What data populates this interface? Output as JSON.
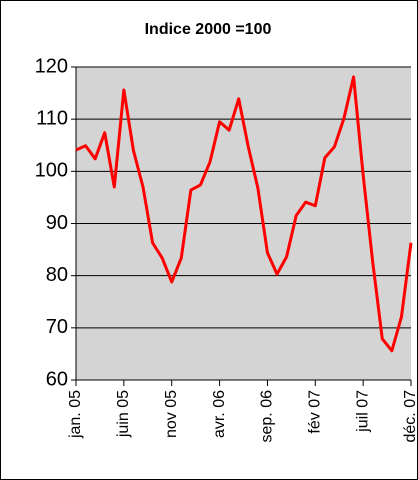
{
  "chart_data": {
    "type": "line",
    "title": "Indice 2000 =100",
    "categories": [
      "jan. 05",
      null,
      null,
      null,
      null,
      "juin 05",
      null,
      null,
      null,
      null,
      "nov 05",
      null,
      null,
      null,
      null,
      "avr. 06",
      null,
      null,
      null,
      null,
      "sep. 06",
      null,
      null,
      null,
      null,
      "fév 07",
      null,
      null,
      null,
      null,
      "juil 07",
      null,
      null,
      null,
      null,
      "déc. 07"
    ],
    "series": [
      {
        "color": "#ff0000",
        "values": [
          104.1,
          104.9,
          102.4,
          107.4,
          97,
          115.6,
          104,
          97,
          86.3,
          83.4,
          78.8,
          83.4,
          96.4,
          97.4,
          101.8,
          109.5,
          107.9,
          113.9,
          104.7,
          96.8,
          84.4,
          80.3,
          83.6,
          91.5,
          94.1,
          93.4,
          102.6,
          104.7,
          110.2,
          118.1,
          99.3,
          82.6,
          67.9,
          65.6,
          72.1,
          86.3
        ]
      }
    ],
    "ylim": [
      60,
      120
    ],
    "yticks": [
      60,
      70,
      80,
      90,
      100,
      110,
      120
    ],
    "grid": true,
    "plot_background": "#d4d4d4"
  }
}
